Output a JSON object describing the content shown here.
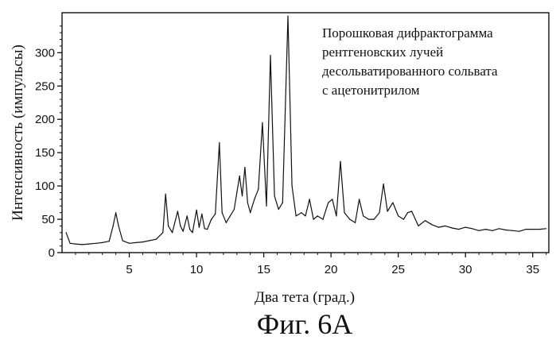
{
  "figure_caption": "Фиг. 6A",
  "chart_data": {
    "type": "line",
    "xlabel": "Два тета (град.)",
    "ylabel": "Интенсивность (импульсы)",
    "xlim": [
      0,
      36.2
    ],
    "ylim": [
      0,
      360
    ],
    "x_ticks": [
      5,
      10,
      15,
      20,
      25,
      30,
      35
    ],
    "y_ticks": [
      0,
      50,
      100,
      150,
      200,
      250,
      300
    ],
    "annotation": [
      "Порошковая дифрактограмма",
      "рентгеновских лучей",
      "десольватированного сольвата",
      "с ацетонитрилом"
    ],
    "grid": false,
    "x": [
      0.3,
      0.6,
      1.0,
      1.5,
      2.0,
      2.5,
      3.0,
      3.5,
      3.8,
      4.0,
      4.2,
      4.5,
      5.0,
      5.5,
      6.0,
      6.5,
      7.0,
      7.5,
      7.7,
      7.9,
      8.2,
      8.6,
      8.8,
      9.0,
      9.3,
      9.5,
      9.7,
      10.0,
      10.2,
      10.4,
      10.6,
      10.8,
      11.1,
      11.4,
      11.7,
      11.9,
      12.2,
      12.5,
      12.8,
      13.0,
      13.2,
      13.4,
      13.6,
      13.8,
      14.0,
      14.3,
      14.6,
      14.9,
      15.2,
      15.5,
      15.8,
      16.1,
      16.4,
      16.8,
      17.1,
      17.4,
      17.8,
      18.1,
      18.4,
      18.7,
      19.0,
      19.4,
      19.8,
      20.1,
      20.4,
      20.7,
      21.0,
      21.4,
      21.8,
      22.1,
      22.4,
      22.8,
      23.2,
      23.6,
      23.9,
      24.2,
      24.6,
      25.0,
      25.4,
      25.7,
      26.0,
      26.5,
      27.0,
      27.5,
      28.0,
      28.5,
      29.0,
      29.5,
      30.0,
      30.5,
      31.0,
      31.5,
      32.0,
      32.5,
      33.0,
      33.5,
      34.0,
      34.5,
      35.0,
      35.5,
      36.0
    ],
    "y": [
      30,
      14,
      13,
      12,
      13,
      14,
      15,
      17,
      40,
      60,
      40,
      18,
      14,
      15,
      16,
      18,
      20,
      30,
      88,
      40,
      30,
      62,
      40,
      32,
      55,
      35,
      30,
      64,
      38,
      58,
      36,
      35,
      50,
      58,
      165,
      60,
      45,
      55,
      65,
      90,
      115,
      85,
      128,
      75,
      60,
      80,
      95,
      195,
      70,
      296,
      85,
      65,
      75,
      355,
      100,
      55,
      60,
      55,
      80,
      50,
      55,
      50,
      75,
      80,
      55,
      137,
      60,
      50,
      45,
      80,
      55,
      50,
      50,
      60,
      103,
      62,
      75,
      55,
      50,
      60,
      62,
      40,
      48,
      42,
      38,
      40,
      37,
      35,
      38,
      36,
      33,
      35,
      33,
      36,
      34,
      33,
      32,
      35,
      35,
      35,
      36
    ]
  }
}
